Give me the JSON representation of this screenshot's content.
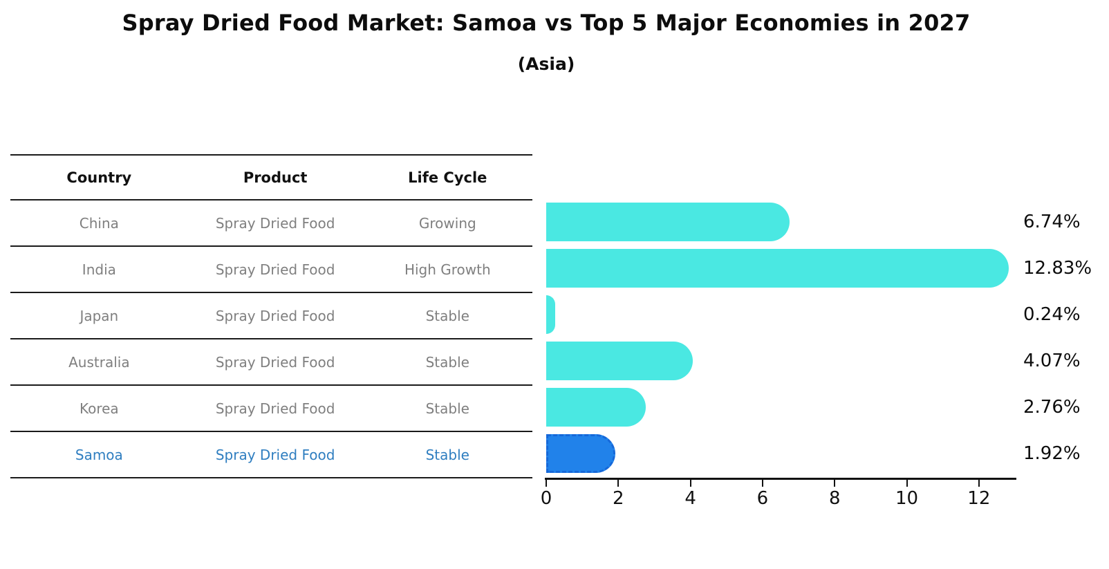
{
  "title": "Spray Dried Food Market: Samoa vs Top 5 Major Economies in 2027",
  "subtitle": "(Asia)",
  "table": {
    "headers": [
      "Country",
      "Product",
      "Life Cycle"
    ],
    "rows": [
      {
        "country": "China",
        "product": "Spray Dried Food",
        "life_cycle": "Growing",
        "highlight": false
      },
      {
        "country": "India",
        "product": "Spray Dried Food",
        "life_cycle": "High Growth",
        "highlight": false
      },
      {
        "country": "Japan",
        "product": "Spray Dried Food",
        "life_cycle": "Stable",
        "highlight": false
      },
      {
        "country": "Australia",
        "product": "Spray Dried Food",
        "life_cycle": "Stable",
        "highlight": false
      },
      {
        "country": "Korea",
        "product": "Spray Dried Food",
        "life_cycle": "Stable",
        "highlight": false
      },
      {
        "country": "Samoa",
        "product": "Spray Dried Food",
        "life_cycle": "Stable",
        "highlight": true
      }
    ]
  },
  "chart_data": {
    "type": "bar",
    "orientation": "horizontal",
    "title": "Spray Dried Food Market: Samoa vs Top 5 Major Economies in 2027",
    "subtitle": "(Asia)",
    "categories": [
      "China",
      "India",
      "Japan",
      "Australia",
      "Korea",
      "Samoa"
    ],
    "values": [
      6.74,
      12.83,
      0.24,
      4.07,
      2.76,
      1.92
    ],
    "value_labels": [
      "6.74%",
      "12.83%",
      "0.24%",
      "4.07%",
      "2.76%",
      "1.92%"
    ],
    "x_ticks": [
      0,
      2,
      4,
      6,
      8,
      10,
      12
    ],
    "xlim": [
      0,
      13
    ],
    "grid": false,
    "legend": false,
    "bar_color": "#4ae8e2",
    "highlight_index": 5,
    "highlight_color": "#2182ea",
    "highlight_border_color": "#1668d9",
    "text_colors": {
      "header": "#111111",
      "cell": "#7f7f7f",
      "highlight_row": "#2f7ec0"
    }
  }
}
